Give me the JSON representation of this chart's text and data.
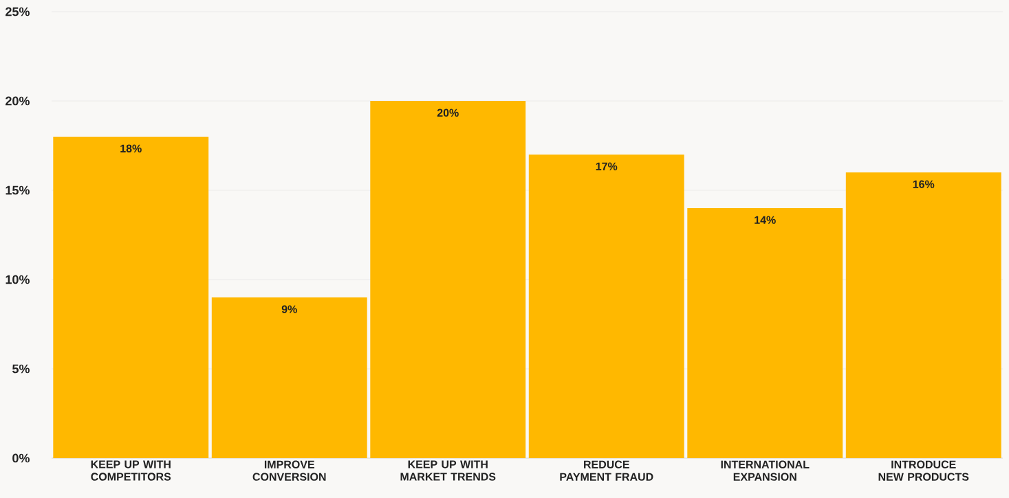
{
  "chart_data": {
    "type": "bar",
    "categories": [
      "KEEP UP WITH COMPETITORS",
      "IMPROVE CONVERSION",
      "KEEP UP WITH MARKET TRENDS",
      "REDUCE PAYMENT FRAUD",
      "INTERNATIONAL EXPANSION",
      "INTRODUCE NEW PRODUCTS"
    ],
    "values": [
      18,
      9,
      20,
      17,
      14,
      16
    ],
    "value_labels": [
      "18%",
      "9%",
      "20%",
      "17%",
      "14%",
      "16%"
    ],
    "color": "#ffb800",
    "ylim": [
      0,
      25
    ],
    "yticks": [
      {
        "value": 0,
        "label": "0%"
      },
      {
        "value": 5,
        "label": "5%"
      },
      {
        "value": 10,
        "label": "10%"
      },
      {
        "value": 15,
        "label": "15%"
      },
      {
        "value": 20,
        "label": "20%"
      },
      {
        "value": 25,
        "label": "25%"
      }
    ],
    "grid": "y"
  }
}
